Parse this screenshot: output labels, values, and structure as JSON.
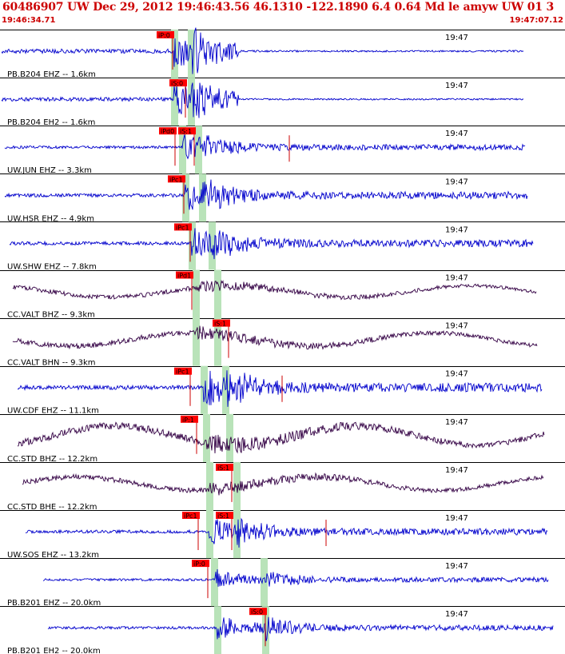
{
  "header": {
    "title": "60486907 UW Dec 29, 2012 19:46:43.56    46.1310 -122.1890  6.4 0.64 Md le amyw UW 01   3",
    "start_time": "19:46:34.71",
    "end_time": "19:47:07.12"
  },
  "colors": {
    "header_text": "#cc0000",
    "trace_blue": "#0000cc",
    "trace_purple": "#330044",
    "pick_box": "#ff0000",
    "pick_line": "#cc0000",
    "window_band": "#b9e3b9"
  },
  "chart_data": {
    "type": "line",
    "title": "60486907 UW Dec 29, 2012 19:46:43.56    46.1310 -122.1890  6.4 0.64 Md le amyw UW 01   3",
    "x_range": [
      "19:46:34.71",
      "19:47:07.12"
    ],
    "minute_tick_label": "19:47",
    "grid": false,
    "traces": [
      {
        "label": "PB.B204 EHZ -- 1.6km",
        "color": "blue",
        "picks": [
          "iP:0"
        ],
        "clock": "19:47"
      },
      {
        "label": "PB.B204 EH2 -- 1.6km",
        "color": "blue",
        "picks": [
          "iS:0"
        ],
        "clock": "19:47"
      },
      {
        "label": "UW.JUN EHZ -- 3.3km",
        "color": "blue",
        "picks": [
          "iPd0",
          "iS:1"
        ],
        "clock": "19:47"
      },
      {
        "label": "UW.HSR EHZ -- 4.9km",
        "color": "blue",
        "picks": [
          "iPc1"
        ],
        "clock": "19:47"
      },
      {
        "label": "UW.SHW EHZ -- 7.8km",
        "color": "blue",
        "picks": [
          "iPc1"
        ],
        "clock": "19:47"
      },
      {
        "label": "CC.VALT BHZ -- 9.3km",
        "color": "purple",
        "picks": [
          "iPd1"
        ],
        "clock": "19:47"
      },
      {
        "label": "CC.VALT BHN -- 9.3km",
        "color": "purple",
        "picks": [
          "iS:1"
        ],
        "clock": "19:47"
      },
      {
        "label": "UW.CDF EHZ -- 11.1km",
        "color": "blue",
        "picks": [
          "iPc1"
        ],
        "clock": "19:47"
      },
      {
        "label": "CC.STD BHZ -- 12.2km",
        "color": "purple",
        "picks": [
          "iP:1"
        ],
        "clock": "19:47"
      },
      {
        "label": "CC.STD BHE -- 12.2km",
        "color": "purple",
        "picks": [
          "iS:1"
        ],
        "clock": "19:47"
      },
      {
        "label": "UW.SOS EHZ -- 13.2km",
        "color": "blue",
        "picks": [
          "iPc1",
          "iS:1"
        ],
        "clock": "19:47"
      },
      {
        "label": "PB.B201 EHZ -- 20.0km",
        "color": "blue",
        "picks": [
          "iP:0"
        ],
        "clock": "19:47"
      },
      {
        "label": "PB.B201 EH2 -- 20.0km",
        "color": "blue",
        "picks": [
          "iS:0"
        ],
        "clock": "19:47"
      }
    ]
  }
}
